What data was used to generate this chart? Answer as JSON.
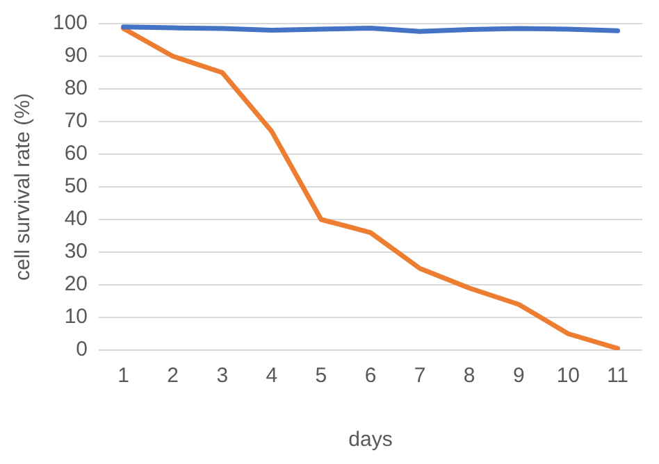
{
  "chart_data": {
    "type": "line",
    "xlabel": "days",
    "ylabel": "cell survival rate (%)",
    "categories": [
      "1",
      "2",
      "3",
      "4",
      "5",
      "6",
      "7",
      "8",
      "9",
      "10",
      "11"
    ],
    "series": [
      {
        "color": "#4472c4",
        "values": [
          99,
          98.7,
          98.5,
          98,
          98.3,
          98.6,
          97.6,
          98.2,
          98.5,
          98.3,
          97.8
        ]
      },
      {
        "color": "#ed7d31",
        "values": [
          98.5,
          90,
          85,
          67,
          40,
          36,
          25,
          19,
          14,
          5,
          0.5
        ]
      }
    ],
    "ylim": [
      0,
      100
    ],
    "yticks": [
      0,
      10,
      20,
      30,
      40,
      50,
      60,
      70,
      80,
      90,
      100
    ],
    "grid": "y",
    "legend": false,
    "marker": "none",
    "line_style": "solid"
  }
}
